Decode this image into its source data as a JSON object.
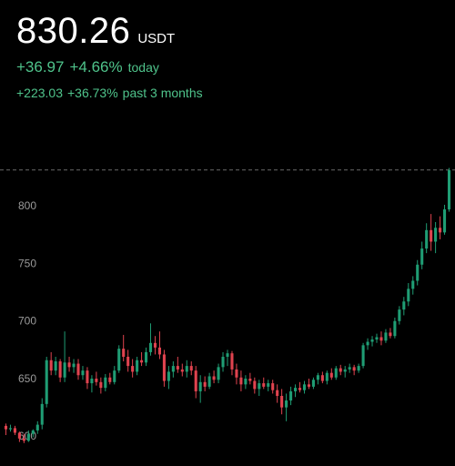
{
  "quote": {
    "price": "830.26",
    "currency": "USDT",
    "today_change": "+36.97",
    "today_percent": "+4.66%",
    "today_label": "today",
    "period_change": "+223.03",
    "period_percent": "+36.73%",
    "period_label": "past 3 months"
  },
  "colors": {
    "up": "#1f9d74",
    "down": "#e0434f",
    "positive_text": "#4fc38b",
    "axis_text": "#9a9a9a",
    "reference_line": "#6b6b6b"
  },
  "chart_data": {
    "type": "candlestick",
    "y_ticks": [
      600,
      650,
      700,
      750,
      800
    ],
    "ylim": [
      595,
      835
    ],
    "current_price": 830.26,
    "candles": [
      {
        "o": 608,
        "h": 610,
        "l": 600,
        "c": 605
      },
      {
        "o": 605,
        "h": 609,
        "l": 603,
        "c": 606
      },
      {
        "o": 606,
        "h": 608,
        "l": 600,
        "c": 602
      },
      {
        "o": 602,
        "h": 603,
        "l": 594,
        "c": 597
      },
      {
        "o": 597,
        "h": 601,
        "l": 593,
        "c": 595
      },
      {
        "o": 595,
        "h": 604,
        "l": 594,
        "c": 601
      },
      {
        "o": 601,
        "h": 605,
        "l": 598,
        "c": 604
      },
      {
        "o": 604,
        "h": 612,
        "l": 601,
        "c": 609
      },
      {
        "o": 609,
        "h": 632,
        "l": 605,
        "c": 627
      },
      {
        "o": 627,
        "h": 668,
        "l": 624,
        "c": 665
      },
      {
        "o": 665,
        "h": 672,
        "l": 652,
        "c": 656
      },
      {
        "o": 656,
        "h": 668,
        "l": 652,
        "c": 664
      },
      {
        "o": 664,
        "h": 666,
        "l": 646,
        "c": 650
      },
      {
        "o": 650,
        "h": 690,
        "l": 646,
        "c": 663
      },
      {
        "o": 663,
        "h": 668,
        "l": 655,
        "c": 659
      },
      {
        "o": 659,
        "h": 666,
        "l": 654,
        "c": 662
      },
      {
        "o": 662,
        "h": 666,
        "l": 648,
        "c": 652
      },
      {
        "o": 652,
        "h": 660,
        "l": 648,
        "c": 656
      },
      {
        "o": 656,
        "h": 659,
        "l": 640,
        "c": 645
      },
      {
        "o": 645,
        "h": 652,
        "l": 637,
        "c": 649
      },
      {
        "o": 649,
        "h": 655,
        "l": 643,
        "c": 646
      },
      {
        "o": 646,
        "h": 650,
        "l": 636,
        "c": 641
      },
      {
        "o": 641,
        "h": 653,
        "l": 638,
        "c": 650
      },
      {
        "o": 650,
        "h": 654,
        "l": 644,
        "c": 646
      },
      {
        "o": 646,
        "h": 660,
        "l": 644,
        "c": 656
      },
      {
        "o": 656,
        "h": 678,
        "l": 654,
        "c": 675
      },
      {
        "o": 675,
        "h": 687,
        "l": 664,
        "c": 668
      },
      {
        "o": 668,
        "h": 674,
        "l": 655,
        "c": 660
      },
      {
        "o": 660,
        "h": 666,
        "l": 650,
        "c": 655
      },
      {
        "o": 655,
        "h": 668,
        "l": 652,
        "c": 665
      },
      {
        "o": 665,
        "h": 672,
        "l": 660,
        "c": 663
      },
      {
        "o": 663,
        "h": 676,
        "l": 660,
        "c": 672
      },
      {
        "o": 672,
        "h": 697,
        "l": 669,
        "c": 680
      },
      {
        "o": 680,
        "h": 686,
        "l": 670,
        "c": 676
      },
      {
        "o": 676,
        "h": 690,
        "l": 666,
        "c": 670
      },
      {
        "o": 670,
        "h": 674,
        "l": 642,
        "c": 647
      },
      {
        "o": 647,
        "h": 660,
        "l": 640,
        "c": 655
      },
      {
        "o": 655,
        "h": 664,
        "l": 650,
        "c": 660
      },
      {
        "o": 660,
        "h": 668,
        "l": 654,
        "c": 657
      },
      {
        "o": 657,
        "h": 662,
        "l": 651,
        "c": 655
      },
      {
        "o": 655,
        "h": 665,
        "l": 650,
        "c": 660
      },
      {
        "o": 660,
        "h": 664,
        "l": 652,
        "c": 656
      },
      {
        "o": 656,
        "h": 660,
        "l": 632,
        "c": 638
      },
      {
        "o": 638,
        "h": 652,
        "l": 628,
        "c": 646
      },
      {
        "o": 646,
        "h": 651,
        "l": 638,
        "c": 642
      },
      {
        "o": 642,
        "h": 654,
        "l": 640,
        "c": 651
      },
      {
        "o": 651,
        "h": 656,
        "l": 645,
        "c": 648
      },
      {
        "o": 648,
        "h": 662,
        "l": 645,
        "c": 659
      },
      {
        "o": 659,
        "h": 672,
        "l": 655,
        "c": 668
      },
      {
        "o": 668,
        "h": 674,
        "l": 660,
        "c": 671
      },
      {
        "o": 671,
        "h": 673,
        "l": 652,
        "c": 657
      },
      {
        "o": 657,
        "h": 662,
        "l": 644,
        "c": 650
      },
      {
        "o": 650,
        "h": 656,
        "l": 638,
        "c": 644
      },
      {
        "o": 644,
        "h": 652,
        "l": 640,
        "c": 649
      },
      {
        "o": 649,
        "h": 654,
        "l": 644,
        "c": 647
      },
      {
        "o": 647,
        "h": 650,
        "l": 636,
        "c": 640
      },
      {
        "o": 640,
        "h": 648,
        "l": 634,
        "c": 645
      },
      {
        "o": 645,
        "h": 650,
        "l": 640,
        "c": 642
      },
      {
        "o": 642,
        "h": 648,
        "l": 638,
        "c": 645
      },
      {
        "o": 645,
        "h": 648,
        "l": 636,
        "c": 639
      },
      {
        "o": 639,
        "h": 644,
        "l": 628,
        "c": 634
      },
      {
        "o": 634,
        "h": 640,
        "l": 618,
        "c": 624
      },
      {
        "o": 624,
        "h": 636,
        "l": 612,
        "c": 630
      },
      {
        "o": 630,
        "h": 642,
        "l": 626,
        "c": 638
      },
      {
        "o": 638,
        "h": 644,
        "l": 633,
        "c": 641
      },
      {
        "o": 641,
        "h": 646,
        "l": 637,
        "c": 639
      },
      {
        "o": 639,
        "h": 647,
        "l": 636,
        "c": 644
      },
      {
        "o": 644,
        "h": 649,
        "l": 640,
        "c": 642
      },
      {
        "o": 642,
        "h": 650,
        "l": 640,
        "c": 648
      },
      {
        "o": 648,
        "h": 654,
        "l": 644,
        "c": 652
      },
      {
        "o": 652,
        "h": 655,
        "l": 645,
        "c": 647
      },
      {
        "o": 647,
        "h": 656,
        "l": 644,
        "c": 654
      },
      {
        "o": 654,
        "h": 658,
        "l": 648,
        "c": 650
      },
      {
        "o": 650,
        "h": 660,
        "l": 648,
        "c": 658
      },
      {
        "o": 658,
        "h": 661,
        "l": 652,
        "c": 655
      },
      {
        "o": 655,
        "h": 660,
        "l": 650,
        "c": 657
      },
      {
        "o": 657,
        "h": 662,
        "l": 654,
        "c": 659
      },
      {
        "o": 659,
        "h": 661,
        "l": 652,
        "c": 656
      },
      {
        "o": 656,
        "h": 662,
        "l": 654,
        "c": 660
      },
      {
        "o": 660,
        "h": 680,
        "l": 658,
        "c": 678
      },
      {
        "o": 678,
        "h": 684,
        "l": 674,
        "c": 681
      },
      {
        "o": 681,
        "h": 686,
        "l": 677,
        "c": 683
      },
      {
        "o": 683,
        "h": 688,
        "l": 680,
        "c": 685
      },
      {
        "o": 685,
        "h": 690,
        "l": 678,
        "c": 682
      },
      {
        "o": 682,
        "h": 692,
        "l": 680,
        "c": 689
      },
      {
        "o": 689,
        "h": 693,
        "l": 684,
        "c": 686
      },
      {
        "o": 686,
        "h": 702,
        "l": 684,
        "c": 699
      },
      {
        "o": 699,
        "h": 712,
        "l": 696,
        "c": 709
      },
      {
        "o": 709,
        "h": 720,
        "l": 704,
        "c": 716
      },
      {
        "o": 716,
        "h": 732,
        "l": 712,
        "c": 727
      },
      {
        "o": 727,
        "h": 738,
        "l": 722,
        "c": 734
      },
      {
        "o": 734,
        "h": 752,
        "l": 730,
        "c": 748
      },
      {
        "o": 748,
        "h": 768,
        "l": 744,
        "c": 762
      },
      {
        "o": 762,
        "h": 784,
        "l": 758,
        "c": 778
      },
      {
        "o": 778,
        "h": 792,
        "l": 760,
        "c": 768
      },
      {
        "o": 768,
        "h": 785,
        "l": 758,
        "c": 780
      },
      {
        "o": 780,
        "h": 790,
        "l": 770,
        "c": 776
      },
      {
        "o": 776,
        "h": 800,
        "l": 774,
        "c": 796
      },
      {
        "o": 796,
        "h": 832,
        "l": 794,
        "c": 830
      }
    ]
  }
}
